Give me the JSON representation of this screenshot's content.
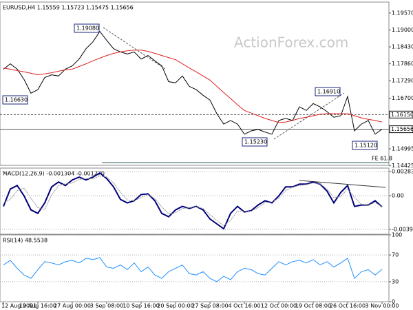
{
  "chart_data": [
    {
      "type": "line",
      "title": "EURUSD,H4 1.15559 1.15723 1.15475 1.15656",
      "watermark": "ActionForex.com",
      "categories": [
        "12 Aug 2021",
        null,
        null,
        null,
        null,
        "19 Aug 16:00",
        null,
        null,
        null,
        null,
        "27 Aug 00:00",
        null,
        null,
        null,
        null,
        "3 Sep 08:00",
        null,
        null,
        null,
        null,
        "10 Sep 16:00",
        null,
        null,
        null,
        null,
        "20 Sep 00:00",
        null,
        null,
        null,
        null,
        "27 Sep 08:00",
        null,
        null,
        null,
        null,
        "4 Oct 16:00",
        null,
        null,
        null,
        null,
        "12 Oct 00:00",
        null,
        null,
        null,
        null,
        "19 Oct 08:00",
        null,
        null,
        null,
        null,
        "26 Oct 16:00",
        null,
        null,
        null,
        null,
        "3 Nov 00:00"
      ],
      "series": [
        {
          "color": "#000000",
          "values": [
            1.1768,
            1.1786,
            1.1768,
            1.1733,
            1.1687,
            1.1699,
            1.174,
            1.1749,
            1.1745,
            1.1768,
            1.1779,
            1.1802,
            1.1837,
            1.186,
            1.1895,
            1.1865,
            1.1837,
            1.1826,
            1.1819,
            1.1826,
            1.1802,
            1.1814,
            1.1796,
            1.1779,
            1.1726,
            1.1722,
            1.1745,
            1.171,
            1.1699,
            1.168,
            1.1664,
            1.1618,
            1.1583,
            1.1595,
            1.1583,
            1.1549,
            1.156,
            1.1565,
            1.1556,
            1.1549,
            1.1595,
            1.1602,
            1.1595,
            1.1641,
            1.1629,
            1.1652,
            1.1641,
            1.1625,
            1.1606,
            1.1611,
            1.1676,
            1.156,
            1.1583,
            1.1595,
            1.1549,
            1.1566
          ]
        },
        {
          "color": "#e02020",
          "values": [
            1.1772,
            1.1768,
            1.1763,
            1.1759,
            1.1754,
            1.1749,
            1.1752,
            1.1756,
            1.1761,
            1.1766,
            1.1768,
            1.1777,
            1.1786,
            1.1796,
            1.1805,
            1.1814,
            1.1821,
            1.1826,
            1.183,
            1.1832,
            1.1832,
            1.1828,
            1.1821,
            1.1814,
            1.1807,
            1.18,
            1.1786,
            1.1772,
            1.1759,
            1.1745,
            1.1731,
            1.171,
            1.1689,
            1.1669,
            1.1648,
            1.1629,
            1.162,
            1.1611,
            1.1602,
            1.1595,
            1.1588,
            1.159,
            1.1595,
            1.1602,
            1.1606,
            1.1611,
            1.1616,
            1.1618,
            1.1618,
            1.1618,
            1.1618,
            1.1611,
            1.1604,
            1.1599,
            1.1595,
            1.159
          ]
        }
      ],
      "ylim": [
        1.1444,
        1.1994
      ],
      "yticks": [
        {
          "value": 1.1957,
          "label": "1.19570"
        },
        {
          "value": 1.19,
          "label": "1.19000"
        },
        {
          "value": 1.1843,
          "label": "1.18430"
        },
        {
          "value": 1.1786,
          "label": "1.17860"
        },
        {
          "value": 1.1729,
          "label": "1.17290"
        },
        {
          "value": 1.167,
          "label": "1.16700"
        },
        1.14995,
        1.14425
      ],
      "hlines": [
        {
          "value": 1.1615,
          "label": "1.16150"
        },
        {
          "value": 1.15656,
          "label": "1.15656"
        },
        {
          "value": 1.1453,
          "label": "FE 61.8"
        }
      ],
      "annotations": [
        "1.19080",
        "1.16630",
        "1.16910",
        "1.15230",
        "1.15120"
      ]
    },
    {
      "type": "line",
      "title": "MACD(12,26,9) -0.001304 -0.001270",
      "series": [
        {
          "color": "#00007a",
          "values": [
            -0.00125,
            0.00079,
            0.0012,
            -2e-05,
            -0.00166,
            -0.00206,
            -0.00084,
            0.00104,
            0.00161,
            0.0012,
            0.00185,
            0.00218,
            0.00185,
            0.00218,
            0.00267,
            0.00201,
            0.00104,
            -0.00043,
            -0.00084,
            -0.00059,
            0.00014,
            0.00022,
            -0.00059,
            -0.00206,
            -0.00247,
            -0.00166,
            -0.00125,
            -0.00149,
            -0.00125,
            -0.00166,
            -0.00272,
            -0.0033,
            -0.00387,
            -0.00206,
            -0.00125,
            -0.0019,
            -0.00174,
            -0.00109,
            -0.00059,
            -0.00084,
            -2e-05,
            0.00104,
            0.00104,
            0.00136,
            0.00136,
            0.00161,
            0.00136,
            0.00055,
            -0.00084,
            0.00038,
            0.0012,
            -0.00125,
            -0.00109,
            -0.00109,
            -0.00059,
            -0.0013
          ]
        },
        {
          "color": "#999999",
          "values": [
            -0.0009,
            -0.0004,
            0.0006,
            0.0009,
            -0.0003,
            -0.0014,
            -0.0016,
            0.0001,
            0.0012,
            0.0014,
            0.0015,
            0.0019,
            0.002,
            0.002,
            0.0023,
            0.0022,
            0.0015,
            0.0004,
            -0.0005,
            -0.0006,
            -0.0002,
            0.0001,
            -0.0003,
            -0.0013,
            -0.0021,
            -0.002,
            -0.0015,
            -0.0014,
            -0.0013,
            -0.0015,
            -0.0022,
            -0.0029,
            -0.0035,
            -0.0029,
            -0.0018,
            -0.0018,
            -0.0018,
            -0.0014,
            -0.0008,
            -0.0007,
            -0.0003,
            0.0006,
            0.001,
            0.0012,
            0.0013,
            0.0015,
            0.0014,
            0.0008,
            -0.0002,
            -0.0001,
            0.0008,
            -0.0002,
            -0.001,
            -0.0011,
            -0.0008,
            -0.00127
          ]
        }
      ],
      "ylim": [
        -0.00451,
        0.00324
      ],
      "yticks": [
        0.00283,
        {
          "value": 0,
          "label": "0.00"
        },
        -0.003939
      ]
    },
    {
      "type": "line",
      "title": "RSI(14) 48.5538",
      "series": [
        {
          "color": "#1e8fff",
          "values": [
            55,
            62,
            50,
            40,
            35,
            48,
            60,
            58,
            55,
            60,
            62,
            58,
            65,
            63,
            66,
            52,
            50,
            55,
            48,
            58,
            45,
            52,
            40,
            35,
            45,
            50,
            55,
            42,
            40,
            45,
            35,
            30,
            38,
            33,
            45,
            50,
            48,
            42,
            40,
            50,
            60,
            55,
            60,
            62,
            58,
            63,
            55,
            60,
            52,
            58,
            65,
            35,
            45,
            48,
            40,
            48.55
          ]
        }
      ],
      "ylim": [
        0,
        100
      ],
      "yticks": [
        100,
        70,
        30,
        0
      ]
    }
  ]
}
